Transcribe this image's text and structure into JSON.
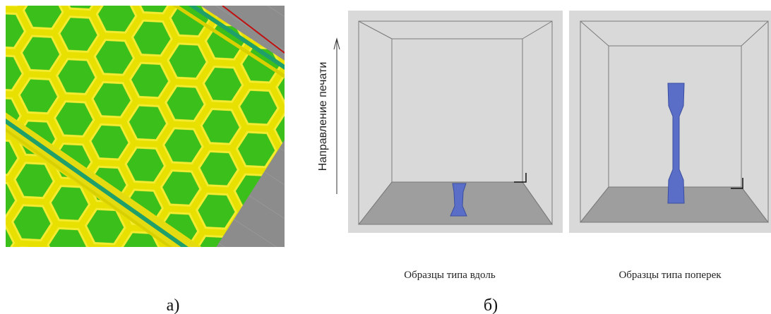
{
  "figure": {
    "left": {
      "label": "а)"
    },
    "right": {
      "axis_label": "Направление печати",
      "captions": [
        "Образцы типа вдоль",
        "Образцы типа поперек"
      ],
      "label": "б)"
    }
  }
}
